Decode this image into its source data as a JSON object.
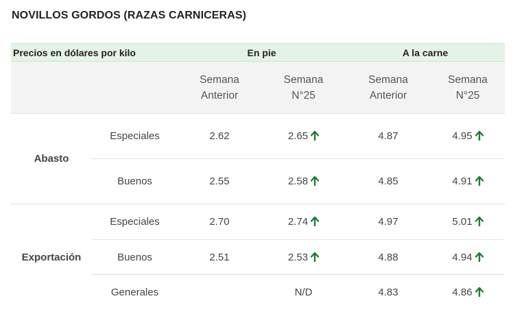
{
  "title": "NOVILLOS GORDOS (RAZAS CARNICERAS)",
  "table": {
    "caption": "Precios en dólares por kilo",
    "groups": [
      "En pie",
      "A la carne"
    ],
    "subheaders": [
      [
        "Semana",
        "Anterior"
      ],
      [
        "Semana",
        "N°25"
      ],
      [
        "Semana",
        "Anterior"
      ],
      [
        "Semana",
        "N°25"
      ]
    ],
    "sections": [
      {
        "name": "Abasto",
        "rows": [
          {
            "category": "Especiales",
            "pie_prev": "2.62",
            "pie_curr": "2.65",
            "pie_trend": "up",
            "carne_prev": "4.87",
            "carne_curr": "4.95",
            "carne_trend": "up"
          },
          {
            "category": "Buenos",
            "pie_prev": "2.55",
            "pie_curr": "2.58",
            "pie_trend": "up",
            "carne_prev": "4.85",
            "carne_curr": "4.91",
            "carne_trend": "up"
          }
        ]
      },
      {
        "name": "Exportación",
        "rows": [
          {
            "category": "Especiales",
            "pie_prev": "2.70",
            "pie_curr": "2.74",
            "pie_trend": "up",
            "carne_prev": "4.97",
            "carne_curr": "5.01",
            "carne_trend": "up"
          },
          {
            "category": "Buenos",
            "pie_prev": "2.51",
            "pie_curr": "2.53",
            "pie_trend": "up",
            "carne_prev": "4.88",
            "carne_curr": "4.94",
            "carne_trend": "up"
          },
          {
            "category": "Generales",
            "pie_prev": "",
            "pie_curr": "N/D",
            "pie_trend": "",
            "carne_prev": "4.83",
            "carne_curr": "4.86",
            "carne_trend": "up"
          }
        ]
      }
    ]
  },
  "colors": {
    "header_green": "#e3f3e5",
    "arrow_up": "#1f7a33"
  },
  "icons": {
    "trend_up": "arrow-up-icon"
  }
}
